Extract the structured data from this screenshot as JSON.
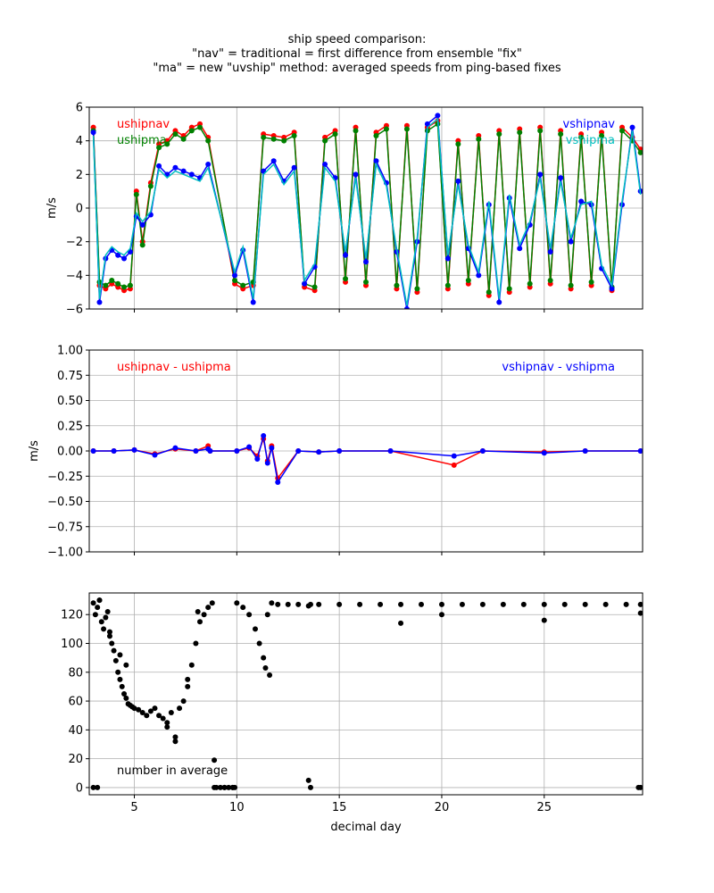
{
  "figure": {
    "title_lines": [
      "ship speed comparison:",
      "\"nav\" = traditional = first difference from ensemble \"fix\"",
      "\"ma\" = new \"uvship\" method: averaged speeds from ping-based fixes"
    ]
  },
  "chart_data": [
    {
      "type": "line",
      "ylabel": "m/s",
      "xlim": [
        2.8,
        29.8
      ],
      "ylim": [
        -6,
        6
      ],
      "xticks": [
        5,
        10,
        15,
        20,
        25
      ],
      "yticks": [
        -6,
        -4,
        -2,
        0,
        2,
        4,
        6
      ],
      "grid": true,
      "legend_texts": [
        {
          "text": "ushipnav",
          "color": "#ff0000",
          "position": "top-left"
        },
        {
          "text": "ushipma",
          "color": "#008000",
          "position": "top-left"
        },
        {
          "text": "vshipnav",
          "color": "#0000ff",
          "position": "top-right"
        },
        {
          "text": "vshipma",
          "color": "#00bfbf",
          "position": "top-right"
        }
      ],
      "series": [
        {
          "name": "ushipnav",
          "color": "#ff0000",
          "marker": true,
          "x": [
            3.0,
            3.3,
            3.6,
            3.9,
            4.2,
            4.5,
            4.8,
            5.1,
            5.4,
            5.8,
            6.2,
            6.6,
            7.0,
            7.4,
            7.8,
            8.2,
            8.6,
            9.9,
            10.3,
            10.8,
            11.3,
            11.8,
            12.3,
            12.8,
            13.3,
            13.8,
            14.3,
            14.8,
            15.3,
            15.8,
            16.3,
            16.8,
            17.3,
            17.8,
            18.3,
            18.8,
            19.3,
            19.8,
            20.3,
            20.8,
            21.3,
            21.8,
            22.3,
            22.8,
            23.3,
            23.8,
            24.3,
            24.8,
            25.3,
            25.8,
            26.3,
            26.8,
            27.3,
            27.8,
            28.3,
            28.8,
            29.3,
            29.7
          ],
          "y": [
            4.8,
            -4.6,
            -4.8,
            -4.5,
            -4.7,
            -4.9,
            -4.8,
            1.0,
            -2.0,
            1.5,
            3.8,
            4.0,
            4.6,
            4.3,
            4.8,
            5.0,
            4.2,
            -4.5,
            -4.8,
            -4.6,
            4.4,
            4.3,
            4.2,
            4.5,
            -4.7,
            -4.9,
            4.2,
            4.6,
            -4.4,
            4.8,
            -4.6,
            4.5,
            4.9,
            -4.8,
            4.9,
            -5.0,
            4.8,
            5.2,
            -4.8,
            4.0,
            -4.5,
            4.3,
            -5.2,
            4.6,
            -5.0,
            4.7,
            -4.7,
            4.8,
            -4.5,
            4.6,
            -4.8,
            4.4,
            -4.6,
            4.5,
            -4.9,
            4.8,
            4.2,
            3.5
          ]
        },
        {
          "name": "ushipma",
          "color": "#008000",
          "marker": true,
          "x": [
            3.0,
            3.3,
            3.6,
            3.9,
            4.2,
            4.5,
            4.8,
            5.1,
            5.4,
            5.8,
            6.2,
            6.6,
            7.0,
            7.4,
            7.8,
            8.2,
            8.6,
            9.9,
            10.3,
            10.8,
            11.3,
            11.8,
            12.3,
            12.8,
            13.3,
            13.8,
            14.3,
            14.8,
            15.3,
            15.8,
            16.3,
            16.8,
            17.3,
            17.8,
            18.3,
            18.8,
            19.3,
            19.8,
            20.3,
            20.8,
            21.3,
            21.8,
            22.3,
            22.8,
            23.3,
            23.8,
            24.3,
            24.8,
            25.3,
            25.8,
            26.3,
            26.8,
            27.3,
            27.8,
            28.3,
            28.8,
            29.3,
            29.7
          ],
          "y": [
            4.6,
            -4.4,
            -4.6,
            -4.3,
            -4.5,
            -4.7,
            -4.6,
            0.8,
            -2.2,
            1.3,
            3.6,
            3.8,
            4.4,
            4.1,
            4.6,
            4.8,
            4.0,
            -4.3,
            -4.6,
            -4.4,
            4.2,
            4.1,
            4.0,
            4.3,
            -4.5,
            -4.7,
            4.0,
            4.4,
            -4.2,
            4.6,
            -4.4,
            4.3,
            4.7,
            -4.6,
            4.7,
            -4.8,
            4.6,
            5.0,
            -4.6,
            3.8,
            -4.3,
            4.1,
            -5.0,
            4.4,
            -4.8,
            4.5,
            -4.5,
            4.6,
            -4.3,
            4.4,
            -4.6,
            4.2,
            -4.4,
            4.3,
            -4.7,
            4.6,
            4.0,
            3.3
          ]
        },
        {
          "name": "vshipnav",
          "color": "#0000ff",
          "marker": true,
          "x": [
            3.0,
            3.3,
            3.6,
            3.9,
            4.2,
            4.5,
            4.8,
            5.1,
            5.4,
            5.8,
            6.2,
            6.6,
            7.0,
            7.4,
            7.8,
            8.2,
            8.6,
            9.9,
            10.3,
            10.8,
            11.3,
            11.8,
            12.3,
            12.8,
            13.3,
            13.8,
            14.3,
            14.8,
            15.3,
            15.8,
            16.3,
            16.8,
            17.3,
            17.8,
            18.3,
            18.8,
            19.3,
            19.8,
            20.3,
            20.8,
            21.3,
            21.8,
            22.3,
            22.8,
            23.3,
            23.8,
            24.3,
            24.8,
            25.3,
            25.8,
            26.3,
            26.8,
            27.3,
            27.8,
            28.3,
            28.8,
            29.3,
            29.7
          ],
          "y": [
            4.5,
            -5.6,
            -3.0,
            -2.5,
            -2.8,
            -3.0,
            -2.6,
            -0.5,
            -1.0,
            -0.4,
            2.5,
            2.0,
            2.4,
            2.2,
            2.0,
            1.8,
            2.6,
            -4.0,
            -2.5,
            -5.6,
            2.2,
            2.8,
            1.6,
            2.4,
            -4.5,
            -3.5,
            2.6,
            1.8,
            -2.8,
            2.0,
            -3.2,
            2.8,
            1.5,
            -2.6,
            -6.0,
            -2.0,
            5.0,
            5.5,
            -3.0,
            1.6,
            -2.4,
            -4.0,
            0.2,
            -5.6,
            0.6,
            -2.4,
            -1.0,
            2.0,
            -2.6,
            1.8,
            -2.0,
            0.4,
            0.2,
            -3.6,
            -4.8,
            0.2,
            4.8,
            1.0
          ]
        },
        {
          "name": "vshipma",
          "color": "#00bfbf",
          "marker": false,
          "x": [
            3.0,
            3.3,
            3.6,
            3.9,
            4.2,
            4.5,
            4.8,
            5.1,
            5.4,
            5.8,
            6.2,
            6.6,
            7.0,
            7.4,
            7.8,
            8.2,
            8.6,
            9.9,
            10.3,
            10.8,
            11.3,
            11.8,
            12.3,
            12.8,
            13.3,
            13.8,
            14.3,
            14.8,
            15.3,
            15.8,
            16.3,
            16.8,
            17.3,
            17.8,
            18.3,
            18.8,
            19.3,
            19.8,
            20.3,
            20.8,
            21.3,
            21.8,
            22.3,
            22.8,
            23.3,
            23.8,
            24.3,
            24.8,
            25.3,
            25.8,
            26.3,
            26.8,
            27.3,
            27.8,
            28.3,
            28.8,
            29.3,
            29.7
          ],
          "y": [
            4.3,
            -5.4,
            -2.8,
            -2.3,
            -2.6,
            -2.8,
            -2.4,
            -0.3,
            -0.8,
            -0.2,
            2.3,
            1.8,
            2.2,
            2.0,
            1.8,
            1.6,
            2.4,
            -3.8,
            -2.3,
            -5.4,
            2.0,
            2.6,
            1.4,
            2.2,
            -4.3,
            -3.3,
            2.4,
            1.6,
            -2.6,
            1.8,
            -3.0,
            2.6,
            1.3,
            -2.4,
            -5.8,
            -1.8,
            4.8,
            5.3,
            -2.8,
            1.4,
            -2.2,
            -3.8,
            0.4,
            -5.4,
            0.8,
            -2.2,
            -0.8,
            1.8,
            -2.4,
            1.6,
            -1.8,
            0.2,
            0.4,
            -3.4,
            -4.6,
            0.4,
            4.6,
            0.8
          ]
        }
      ]
    },
    {
      "type": "line",
      "ylabel": "m/s",
      "xlim": [
        2.8,
        29.8
      ],
      "ylim": [
        -1.0,
        1.0
      ],
      "xticks": [
        5,
        10,
        15,
        20,
        25
      ],
      "yticks": [
        -1.0,
        -0.75,
        -0.5,
        -0.25,
        0.0,
        0.25,
        0.5,
        0.75,
        1.0
      ],
      "ytick_labels": [
        "−1.00",
        "−0.75",
        "−0.50",
        "−0.25",
        "0.00",
        "0.25",
        "0.50",
        "0.75",
        "1.00"
      ],
      "grid": true,
      "legend_texts": [
        {
          "text": "ushipnav - ushipma",
          "color": "#ff0000",
          "position": "top-left"
        },
        {
          "text": "vshipnav - vshipma",
          "color": "#0000ff",
          "position": "top-right"
        }
      ],
      "series": [
        {
          "name": "ushipnav - ushipma",
          "color": "#ff0000",
          "marker": true,
          "x": [
            3.0,
            4.0,
            5.0,
            6.0,
            7.0,
            8.0,
            8.6,
            8.7,
            10.0,
            10.6,
            11.0,
            11.3,
            11.5,
            11.7,
            12.0,
            13.0,
            14.0,
            15.0,
            17.5,
            20.6,
            22.0,
            25.0,
            27.0,
            29.7
          ],
          "y": [
            0.0,
            0.0,
            0.01,
            -0.03,
            0.02,
            0.0,
            0.05,
            0.0,
            0.0,
            0.03,
            -0.05,
            0.12,
            -0.1,
            0.05,
            -0.27,
            0.0,
            -0.01,
            0.0,
            0.0,
            -0.14,
            0.0,
            -0.01,
            0.0,
            0.0
          ]
        },
        {
          "name": "vshipnav - vshipma",
          "color": "#0000ff",
          "marker": true,
          "x": [
            3.0,
            4.0,
            5.0,
            6.0,
            7.0,
            8.0,
            8.6,
            8.7,
            10.0,
            10.6,
            11.0,
            11.3,
            11.5,
            11.7,
            12.0,
            13.0,
            14.0,
            15.0,
            17.5,
            20.6,
            22.0,
            25.0,
            27.0,
            29.7
          ],
          "y": [
            0.0,
            0.0,
            0.01,
            -0.04,
            0.03,
            0.0,
            0.02,
            0.0,
            0.0,
            0.04,
            -0.08,
            0.15,
            -0.12,
            0.03,
            -0.31,
            0.0,
            -0.01,
            0.0,
            0.0,
            -0.05,
            0.0,
            -0.02,
            0.0,
            0.0
          ]
        }
      ]
    },
    {
      "type": "scatter",
      "xlabel": "decimal day",
      "xlim": [
        2.8,
        29.8
      ],
      "ylim": [
        -5,
        135
      ],
      "xticks": [
        5,
        10,
        15,
        20,
        25
      ],
      "yticks": [
        0,
        20,
        40,
        60,
        80,
        100,
        120
      ],
      "grid": true,
      "annotations": [
        {
          "text": "number in average",
          "color": "#000000",
          "position": "bottom-left"
        }
      ],
      "series": [
        {
          "name": "number in average",
          "color": "#000000",
          "x": [
            3.0,
            3.1,
            3.2,
            3.3,
            3.4,
            3.5,
            3.6,
            3.7,
            3.8,
            3.9,
            4.0,
            4.1,
            4.2,
            4.3,
            4.4,
            4.5,
            4.6,
            4.7,
            4.8,
            4.9,
            5.0,
            5.2,
            5.4,
            5.6,
            5.8,
            6.0,
            6.2,
            6.4,
            6.6,
            6.8,
            7.0,
            7.2,
            7.4,
            7.6,
            7.8,
            8.0,
            8.2,
            8.4,
            8.6,
            8.8,
            9.0,
            9.2,
            9.4,
            9.6,
            9.8,
            10.0,
            10.3,
            10.6,
            10.9,
            11.1,
            11.3,
            11.5,
            11.7,
            12.0,
            12.5,
            13.0,
            13.5,
            13.6,
            14.0,
            15.0,
            16.0,
            17.0,
            18.0,
            19.0,
            20.0,
            21.0,
            22.0,
            23.0,
            24.0,
            25.0,
            26.0,
            27.0,
            28.0,
            29.0,
            29.7,
            3.0,
            3.2,
            8.9,
            9.4,
            9.9,
            13.5,
            13.6,
            29.6,
            29.7,
            3.3,
            3.8,
            4.3,
            4.6,
            6.6,
            7.0,
            7.6,
            8.1,
            8.9,
            9.8,
            11.4,
            11.6,
            18.0,
            20.0,
            25.0,
            29.7
          ],
          "y": [
            128,
            120,
            125,
            130,
            115,
            110,
            118,
            122,
            108,
            100,
            95,
            88,
            80,
            75,
            70,
            65,
            62,
            58,
            57,
            56,
            55,
            54,
            52,
            50,
            53,
            55,
            50,
            48,
            45,
            52,
            35,
            55,
            60,
            70,
            85,
            100,
            115,
            120,
            125,
            128,
            0,
            0,
            0,
            0,
            0,
            128,
            125,
            120,
            110,
            100,
            90,
            120,
            128,
            127,
            127,
            127,
            126,
            127,
            127,
            127,
            127,
            127,
            127,
            127,
            127,
            127,
            127,
            127,
            127,
            127,
            127,
            127,
            127,
            127,
            127,
            0,
            0,
            0,
            0,
            0,
            5,
            0,
            0,
            0,
            130,
            105,
            92,
            85,
            42,
            32,
            75,
            122,
            19,
            0,
            83,
            78,
            114,
            120,
            116,
            121
          ]
        }
      ]
    }
  ]
}
